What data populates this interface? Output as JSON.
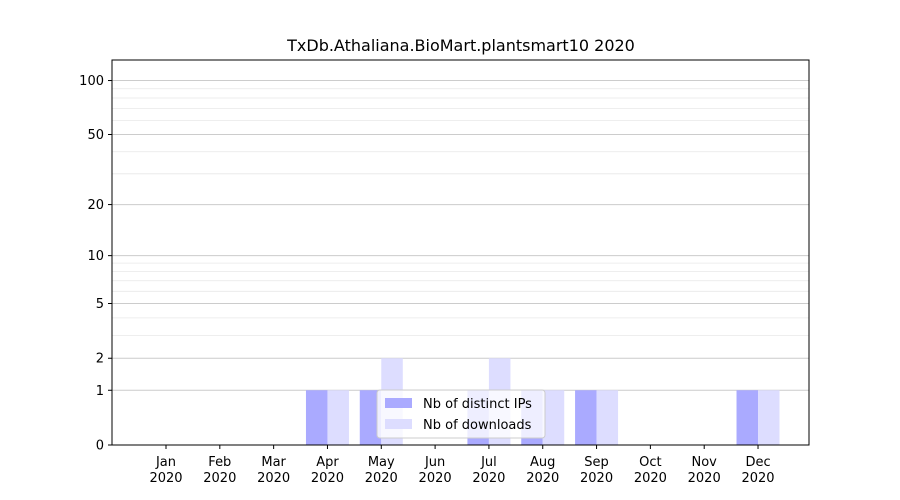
{
  "chart_data": {
    "type": "bar",
    "title": "TxDb.Athaliana.BioMart.plantsmart10 2020",
    "xlabel": "",
    "ylabel": "",
    "y_scale": "symlog",
    "ylim": [
      0,
      130
    ],
    "y_ticks": [
      0,
      1,
      2,
      5,
      10,
      20,
      50,
      100
    ],
    "y_tick_labels": [
      "0",
      "1",
      "2",
      "5",
      "10",
      "20",
      "50",
      "100"
    ],
    "categories": [
      [
        "Jan",
        "2020"
      ],
      [
        "Feb",
        "2020"
      ],
      [
        "Mar",
        "2020"
      ],
      [
        "Apr",
        "2020"
      ],
      [
        "May",
        "2020"
      ],
      [
        "Jun",
        "2020"
      ],
      [
        "Jul",
        "2020"
      ],
      [
        "Aug",
        "2020"
      ],
      [
        "Sep",
        "2020"
      ],
      [
        "Oct",
        "2020"
      ],
      [
        "Nov",
        "2020"
      ],
      [
        "Dec",
        "2020"
      ]
    ],
    "series": [
      {
        "name": "Nb of distinct IPs",
        "color": "#aaaaff",
        "values": [
          0,
          0,
          0,
          1,
          1,
          0,
          1,
          1,
          1,
          0,
          0,
          1
        ]
      },
      {
        "name": "Nb of downloads",
        "color": "#ddddff",
        "values": [
          0,
          0,
          0,
          1,
          2,
          0,
          2,
          1,
          1,
          0,
          0,
          1
        ]
      }
    ],
    "legend_position": "bottom-center",
    "grid": true
  }
}
